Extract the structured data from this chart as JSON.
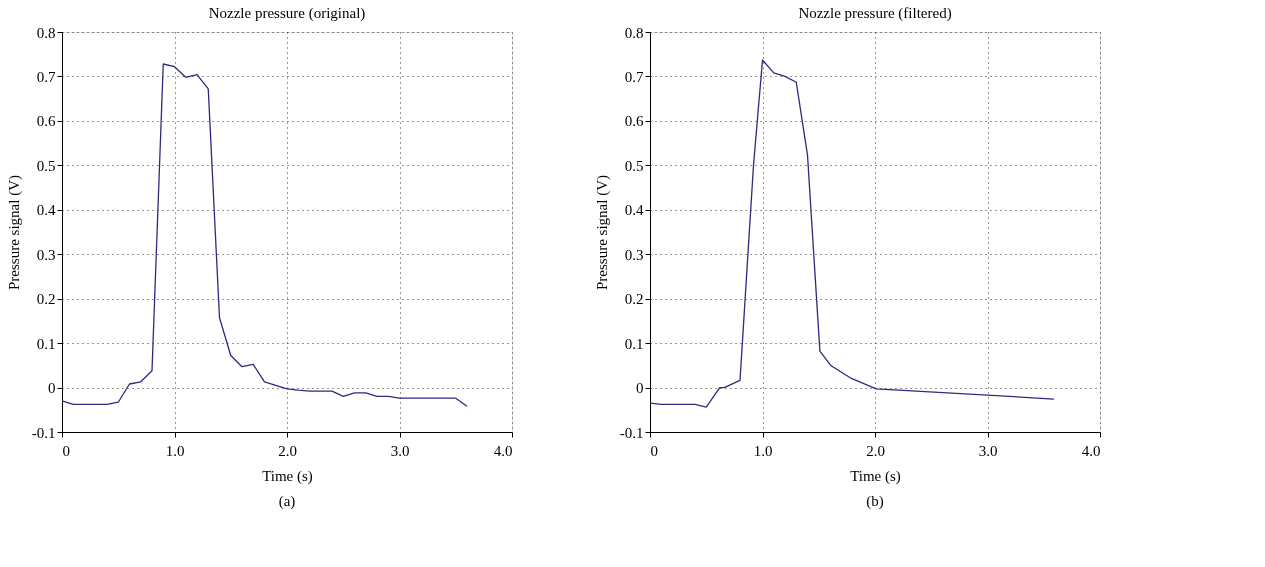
{
  "chart_data": [
    {
      "type": "line",
      "title": "Nozzle pressure (original)",
      "xlabel": "Time (s)",
      "ylabel": "Pressure signal (V)",
      "x": [
        0,
        0.1,
        0.2,
        0.3,
        0.4,
        0.5,
        0.6,
        0.7,
        0.8,
        0.9,
        1.0,
        1.1,
        1.2,
        1.3,
        1.4,
        1.5,
        1.6,
        1.7,
        1.8,
        1.9,
        2.0,
        2.1,
        2.2,
        2.3,
        2.4,
        2.5,
        2.6,
        2.7,
        2.8,
        2.9,
        3.0,
        3.1,
        3.2,
        3.3,
        3.4,
        3.5,
        3.6
      ],
      "series": [
        {
          "color": "#2b2b7f",
          "values": [
            -0.03,
            -0.038,
            -0.038,
            -0.038,
            -0.038,
            -0.033,
            0.008,
            0.013,
            0.038,
            0.728,
            0.722,
            0.698,
            0.704,
            0.672,
            0.157,
            0.072,
            0.047,
            0.052,
            0.013,
            0.005,
            -0.003,
            -0.006,
            -0.008,
            -0.008,
            -0.008,
            -0.02,
            -0.012,
            -0.012,
            -0.02,
            -0.02,
            -0.024,
            -0.024,
            -0.024,
            -0.024,
            -0.024,
            -0.024,
            -0.042
          ]
        }
      ],
      "xlim": [
        0,
        4
      ],
      "ylim": [
        -0.1,
        0.8
      ],
      "xticks": [
        0,
        {
          "value": 1,
          "label": "1.0"
        },
        {
          "value": 2,
          "label": "2.0"
        },
        {
          "value": 3,
          "label": "3.0"
        },
        {
          "value": 4,
          "label": "4.0"
        }
      ],
      "yticks": [
        -0.1,
        0,
        0.1,
        0.2,
        0.3,
        0.4,
        0.5,
        0.6,
        0.7,
        0.8
      ],
      "grid": true,
      "line_style": "solid",
      "annotations": [
        "(a)"
      ]
    },
    {
      "type": "line",
      "title": "Nozzle pressure (filtered)",
      "xlabel": "Time (s)",
      "ylabel": "Pressure signal (V)",
      "x": [
        0,
        0.1,
        0.2,
        0.3,
        0.4,
        0.5,
        0.62,
        0.66,
        0.8,
        0.92,
        1.0,
        1.1,
        1.2,
        1.3,
        1.4,
        1.51,
        1.61,
        1.78,
        2.01,
        3.0,
        3.59
      ],
      "series": [
        {
          "color": "#2b2b7f",
          "values": [
            -0.035,
            -0.038,
            -0.038,
            -0.038,
            -0.038,
            -0.044,
            0.0,
            0.0,
            0.016,
            0.5,
            0.737,
            0.708,
            0.7,
            0.687,
            0.523,
            0.082,
            0.049,
            0.022,
            -0.003,
            -0.017,
            -0.026
          ]
        }
      ],
      "xlim": [
        0,
        4
      ],
      "ylim": [
        -0.1,
        0.8
      ],
      "xticks": [
        0,
        {
          "value": 1,
          "label": "1.0"
        },
        {
          "value": 2,
          "label": "2.0"
        },
        {
          "value": 3,
          "label": "3.0"
        },
        {
          "value": 4,
          "label": "4.0"
        }
      ],
      "yticks": [
        -0.1,
        0,
        0.1,
        0.2,
        0.3,
        0.4,
        0.5,
        0.6,
        0.7,
        0.8
      ],
      "grid": true,
      "line_style": "solid",
      "annotations": [
        "(b)"
      ]
    }
  ]
}
